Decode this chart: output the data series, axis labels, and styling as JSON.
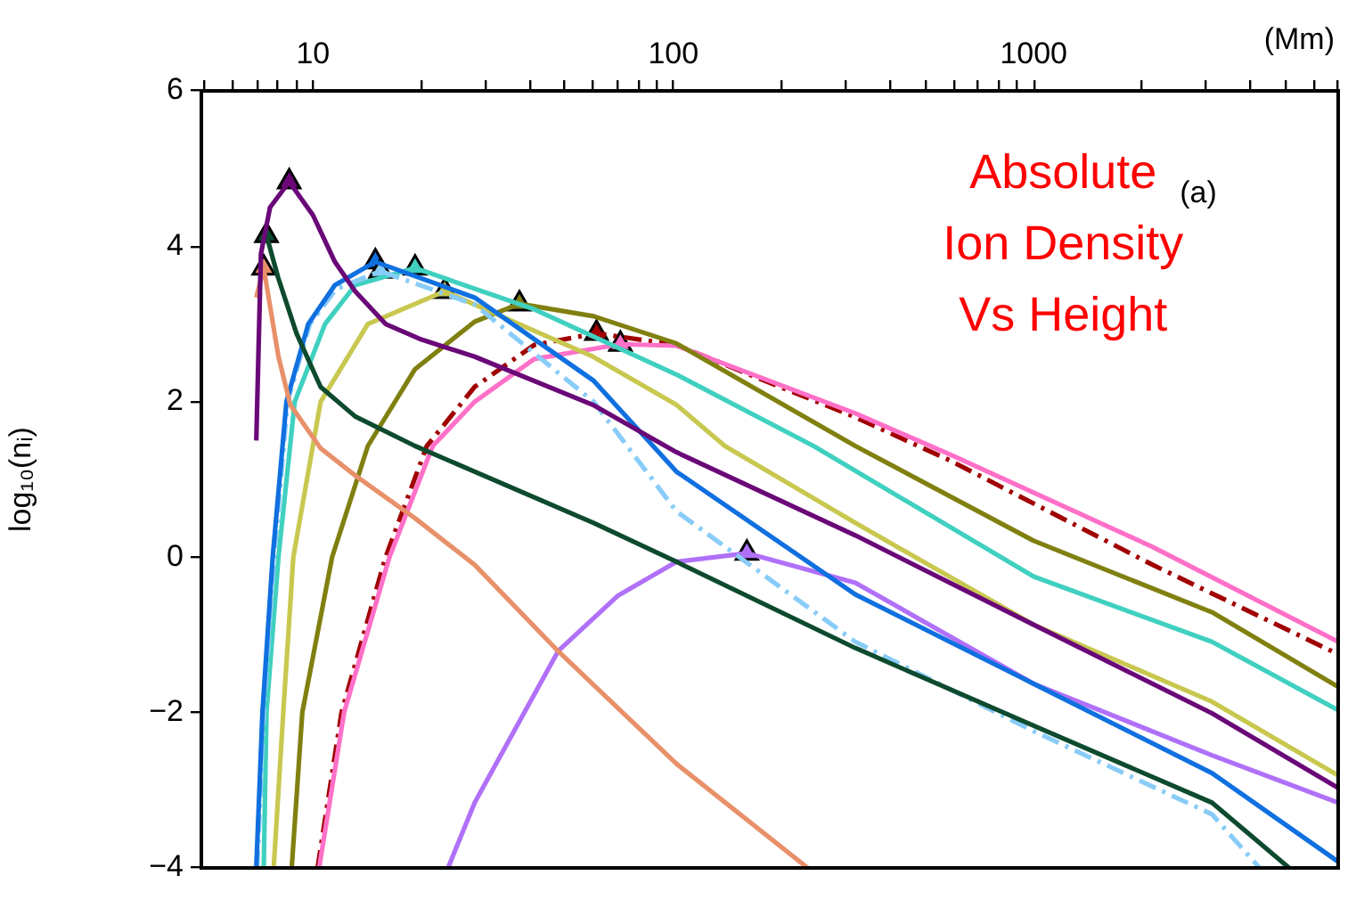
{
  "chart_data": {
    "type": "line",
    "title": "Absolute Ion Density Vs Height",
    "ylabel": "log₁₀(nᵢ)",
    "x2label": "(Mm)",
    "annotations": [
      "(a)"
    ],
    "grid": false,
    "legend": false,
    "log": "x",
    "xlim": [
      4.9,
      7000
    ],
    "xticks": [
      {
        "value": 5,
        "label": null
      },
      {
        "value": 6,
        "label": null
      },
      {
        "value": 7,
        "label": null
      },
      {
        "value": 8,
        "label": null
      },
      {
        "value": 9,
        "label": null
      },
      10,
      {
        "value": 20,
        "label": null
      },
      {
        "value": 30,
        "label": null
      },
      {
        "value": 40,
        "label": null
      },
      {
        "value": 50,
        "label": null
      },
      {
        "value": 60,
        "label": null
      },
      {
        "value": 70,
        "label": null
      },
      {
        "value": 80,
        "label": null
      },
      {
        "value": 90,
        "label": null
      },
      100,
      {
        "value": 200,
        "label": null
      },
      {
        "value": 300,
        "label": null
      },
      {
        "value": 400,
        "label": null
      },
      {
        "value": 500,
        "label": null
      },
      {
        "value": 600,
        "label": null
      },
      {
        "value": 700,
        "label": null
      },
      {
        "value": 800,
        "label": null
      },
      {
        "value": 900,
        "label": null
      },
      1000,
      {
        "value": 2000,
        "label": null
      },
      {
        "value": 3000,
        "label": null
      },
      {
        "value": 4000,
        "label": null
      },
      {
        "value": 5000,
        "label": null
      },
      {
        "value": 6000,
        "label": null
      },
      {
        "value": 7000,
        "label": null
      }
    ],
    "ylim": [
      -4,
      6
    ],
    "yticks": [
      {
        "value": -4,
        "label": "−4"
      },
      {
        "value": -2,
        "label": "−2"
      },
      0,
      2,
      4,
      6
    ],
    "series": [
      {
        "color": "#6a0878",
        "x": [
          6.96,
          7.17,
          7.6,
          8.59,
          10,
          11.5,
          13.1,
          15.9,
          20,
          28.1,
          59.8,
          102,
          320,
          1000,
          3126,
          7000
        ],
        "values": [
          1.5,
          3.9,
          4.5,
          4.83,
          4.4,
          3.8,
          3.42,
          3.0,
          2.8,
          2.58,
          1.96,
          1.35,
          0.28,
          -0.87,
          -2.01,
          -2.97
        ]
      },
      {
        "color": "#0d4a2e",
        "x": [
          7.43,
          8.0,
          9.0,
          10.5,
          13.1,
          19.2,
          60.1,
          102,
          320,
          1000,
          3126,
          5117
        ],
        "values": [
          4.14,
          3.6,
          2.88,
          2.19,
          1.81,
          1.43,
          0.44,
          -0.06,
          -1.17,
          -2.17,
          -3.16,
          -4.0
        ]
      },
      {
        "color": "#e8906a",
        "x": [
          6.96,
          7.3,
          8.02,
          8.65,
          10.5,
          13.1,
          19.2,
          28.1,
          47.9,
          102,
          236
        ],
        "values": [
          3.34,
          3.72,
          2.58,
          1.96,
          1.4,
          1.05,
          0.5,
          -0.1,
          -1.21,
          -2.66,
          -4.0
        ]
      },
      {
        "color": "#1070e0",
        "x": [
          6.96,
          7.24,
          7.73,
          8.44,
          9.7,
          11.5,
          14.9,
          28.1,
          60.1,
          102,
          320,
          1000,
          3126,
          7000
        ],
        "values": [
          -4,
          -2,
          0,
          2,
          3,
          3.5,
          3.8,
          3.34,
          2.27,
          1.1,
          -0.48,
          -1.63,
          -2.78,
          -3.92
        ]
      },
      {
        "color": "#88ccf8",
        "line_style": "dashed",
        "x": [
          7.0,
          7.3,
          7.8,
          8.5,
          9.8,
          11.6,
          15.4,
          28.1,
          60.1,
          102,
          320,
          1000,
          3126,
          4236
        ],
        "values": [
          -4,
          -2,
          0,
          2,
          3,
          3.45,
          3.68,
          3.25,
          2.0,
          0.59,
          -1.09,
          -2.24,
          -3.31,
          -4.0
        ]
      },
      {
        "color": "#40d0c0",
        "x": [
          7.3,
          7.43,
          8.02,
          8.9,
          10.8,
          13.1,
          19.2,
          41.1,
          102,
          245,
          1000,
          3126,
          7000
        ],
        "values": [
          -4,
          -2,
          0,
          2,
          3,
          3.5,
          3.72,
          3.19,
          2.35,
          1.43,
          -0.25,
          -1.09,
          -1.97
        ]
      },
      {
        "color": "#c8c850",
        "x": [
          7.78,
          8.27,
          8.82,
          10.5,
          14.2,
          23.2,
          59.8,
          102,
          139,
          320,
          1000,
          3126,
          7000
        ],
        "values": [
          -4,
          -2,
          0,
          2,
          3,
          3.42,
          2.58,
          1.96,
          1.43,
          0.44,
          -0.87,
          -1.86,
          -2.81
        ]
      },
      {
        "color": "#808010",
        "x": [
          8.73,
          9.34,
          11.3,
          14.2,
          19.2,
          28.1,
          37.4,
          60.1,
          102,
          320,
          1000,
          3126,
          7000
        ],
        "values": [
          -4,
          -2,
          0,
          1.43,
          2.42,
          3.03,
          3.26,
          3.1,
          2.75,
          1.43,
          0.21,
          -0.71,
          -1.67
        ]
      },
      {
        "color": "#ff70c8",
        "x": [
          10.4,
          12.2,
          16.3,
          21.5,
          28.1,
          41.1,
          71.3,
          102,
          320,
          600,
          2140,
          7000
        ],
        "values": [
          -4,
          -2,
          0,
          1.43,
          2.0,
          2.55,
          2.74,
          2.72,
          1.85,
          1.3,
          0.13,
          -1.09
        ]
      },
      {
        "color": "#a00000",
        "line_style": "dashed",
        "x": [
          10.3,
          12.0,
          15.9,
          20.7,
          28.1,
          41.1,
          61.2,
          102,
          320,
          588,
          2140,
          7000
        ],
        "values": [
          -4,
          -2,
          0,
          1.43,
          2.19,
          2.73,
          2.88,
          2.73,
          1.8,
          1.24,
          -0.1,
          -1.25
        ]
      },
      {
        "color": "#b070f8",
        "x": [
          23.7,
          28.1,
          47.9,
          70,
          102,
          160,
          320,
          1000,
          3126,
          7000
        ],
        "values": [
          -4,
          -3.16,
          -1.21,
          -0.5,
          -0.06,
          0.05,
          -0.33,
          -1.63,
          -2.55,
          -3.16
        ]
      },
      {
        "type": "scatter",
        "marker": "triangle",
        "colors": [
          "#6a0878",
          "#0d4a2e",
          "#e8906a",
          "#1070e0",
          "#88ccf8",
          "#40d0c0",
          "#c8c850",
          "#808010",
          "#a00000",
          "#ff70c8",
          "#b070f8"
        ],
        "x": [
          8.59,
          7.43,
          7.3,
          14.9,
          15.4,
          19.2,
          23.2,
          37.4,
          61.2,
          71.3,
          160
        ],
        "values": [
          4.83,
          4.14,
          3.72,
          3.8,
          3.68,
          3.72,
          3.42,
          3.26,
          2.88,
          2.74,
          0.05
        ]
      }
    ]
  }
}
